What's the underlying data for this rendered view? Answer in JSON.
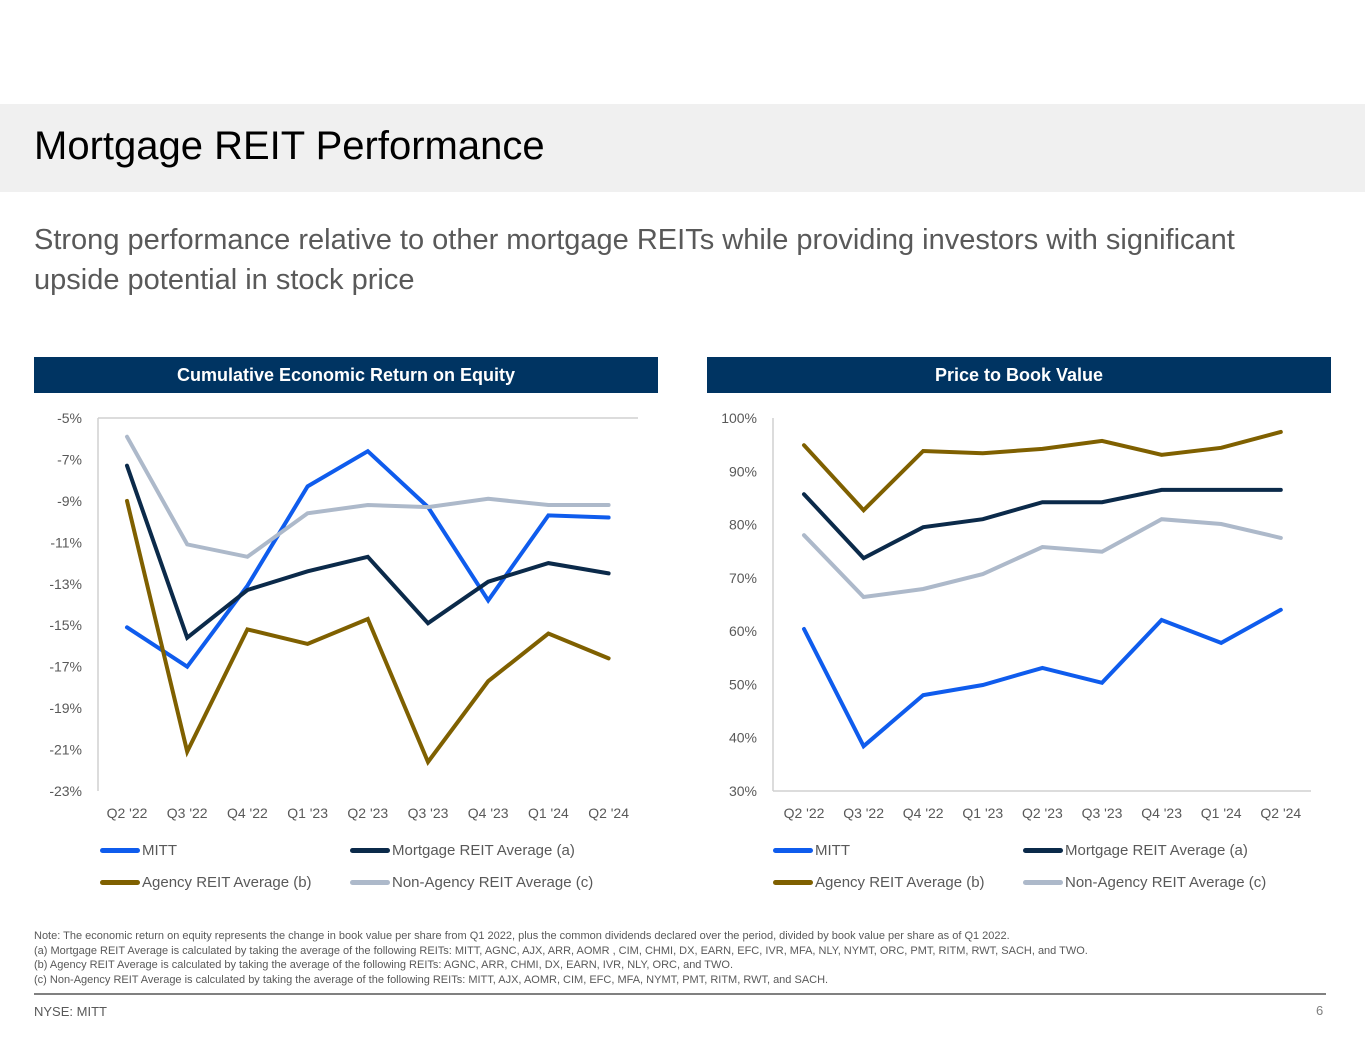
{
  "page": {
    "title": "Mortgage REIT Performance",
    "subtitle": "Strong performance relative to other mortgage REITs while providing investors with significant upside potential in stock price",
    "notes": [
      "Note: The economic return on equity represents the change in book value per share from Q1 2022, plus the common dividends declared over the period, divided by book value per share as of Q1 2022.",
      "(a) Mortgage REIT Average is calculated by taking the average of the following REITs: MITT, AGNC, AJX, ARR, AOMR , CIM, CHMI, DX, EARN, EFC, IVR, MFA, NLY, NYMT, ORC, PMT, RITM, RWT, SACH, and TWO.",
      "(b) Agency REIT Average is calculated by taking the average of the following REITs: AGNC, ARR, CHMI, DX, EARN, IVR, NLY, ORC, and TWO.",
      "(c) Non-Agency REIT Average is calculated by taking the average of the following REITs: MITT, AJX, AOMR, CIM, EFC, MFA, NYMT, PMT, RITM, RWT, and SACH."
    ],
    "footer_ticker": "NYSE: MITT",
    "page_number": "6"
  },
  "colors": {
    "header_bar": "#003462",
    "MITT": "#0f5ced",
    "Mortgage REIT Average (a)": "#0b2a4a",
    "Agency REIT Average (b)": "#7f6000",
    "Non-Agency REIT Average (c)": "#adb9ca"
  },
  "chart_data": [
    {
      "type": "line",
      "title": "Cumulative Economic Return on Equity",
      "xlabel": "",
      "ylabel": "",
      "categories": [
        "Q2 '22",
        "Q3 '22",
        "Q4 '22",
        "Q1 '23",
        "Q2 '23",
        "Q3 '23",
        "Q4 '23",
        "Q1 '24",
        "Q2 '24"
      ],
      "ylim": [
        -23,
        -5
      ],
      "yticks": [
        -5,
        -7,
        -9,
        -11,
        -13,
        -15,
        -17,
        -19,
        -21,
        -23
      ],
      "ytick_labels": [
        "-5%",
        "-7%",
        "-9%",
        "-11%",
        "-13%",
        "-15%",
        "-17%",
        "-19%",
        "-21%",
        "-23%"
      ],
      "grid": false,
      "legend": "bottom",
      "series": [
        {
          "name": "MITT",
          "values": [
            -15.1,
            -17.0,
            -13.1,
            -8.3,
            -6.6,
            -9.3,
            -13.8,
            -9.7,
            -9.8
          ]
        },
        {
          "name": "Mortgage REIT Average (a)",
          "values": [
            -7.3,
            -15.6,
            -13.3,
            -12.4,
            -11.7,
            -14.9,
            -12.9,
            -12.0,
            -12.5
          ]
        },
        {
          "name": "Agency REIT Average (b)",
          "values": [
            -9.0,
            -21.1,
            -15.2,
            -15.9,
            -14.7,
            -21.6,
            -17.7,
            -15.4,
            -16.6
          ]
        },
        {
          "name": "Non-Agency REIT Average (c)",
          "values": [
            -5.9,
            -11.1,
            -11.7,
            -9.6,
            -9.2,
            -9.3,
            -8.9,
            -9.2,
            -9.2
          ]
        }
      ]
    },
    {
      "type": "line",
      "title": "Price to Book Value",
      "xlabel": "",
      "ylabel": "",
      "categories": [
        "Q2 '22",
        "Q3 '22",
        "Q4 '22",
        "Q1 '23",
        "Q2 '23",
        "Q3 '23",
        "Q4 '23",
        "Q1 '24",
        "Q2 '24"
      ],
      "ylim": [
        30,
        100
      ],
      "yticks": [
        100,
        90,
        80,
        70,
        60,
        50,
        40,
        30
      ],
      "ytick_labels": [
        "100%",
        "90%",
        "80%",
        "70%",
        "60%",
        "50%",
        "40%",
        "30%"
      ],
      "grid": false,
      "legend": "bottom",
      "series": [
        {
          "name": "MITT",
          "values": [
            60.4,
            38.4,
            48.0,
            49.9,
            53.1,
            50.3,
            62.1,
            57.8,
            64.0
          ]
        },
        {
          "name": "Mortgage REIT Average (a)",
          "values": [
            85.7,
            73.7,
            79.5,
            81.0,
            84.2,
            84.2,
            86.5,
            86.5,
            86.5
          ]
        },
        {
          "name": "Agency REIT Average (b)",
          "values": [
            94.9,
            82.7,
            93.8,
            93.4,
            94.2,
            95.7,
            93.1,
            94.4,
            97.4
          ]
        },
        {
          "name": "Non-Agency REIT Average (c)",
          "values": [
            78.0,
            66.4,
            67.9,
            70.7,
            75.8,
            74.9,
            81.0,
            80.1,
            77.5
          ]
        }
      ]
    }
  ]
}
